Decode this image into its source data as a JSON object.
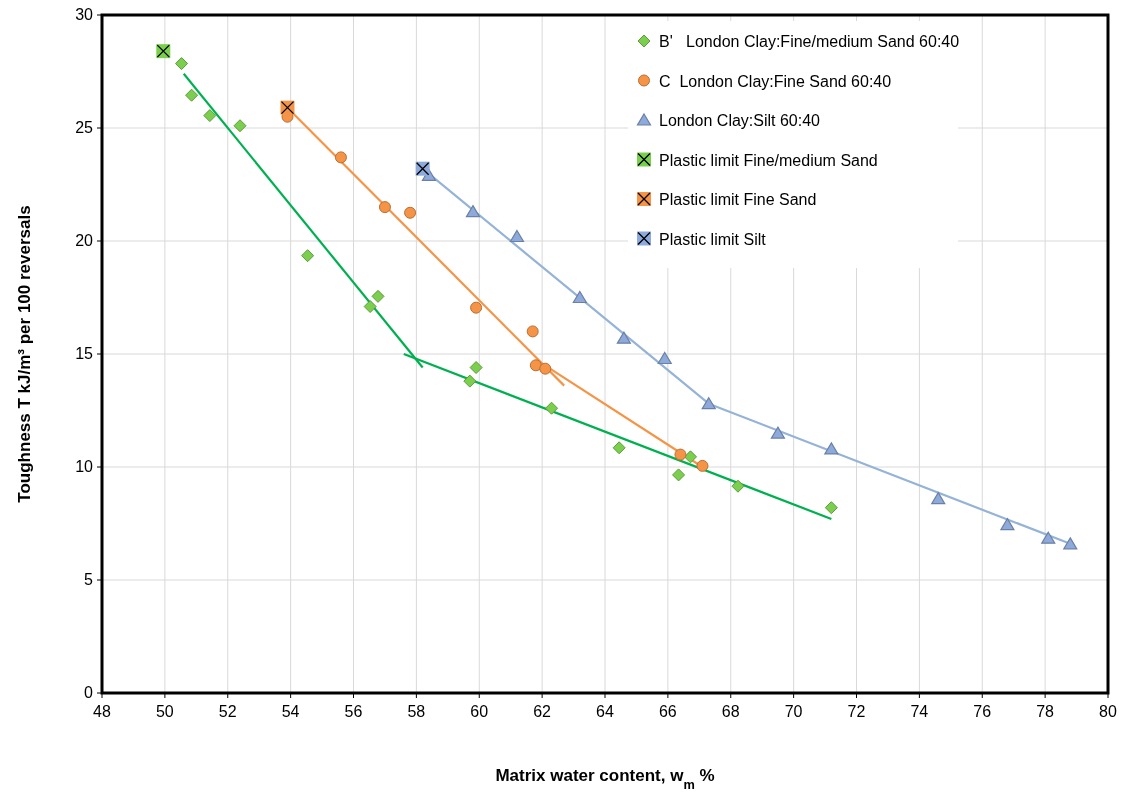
{
  "chart_data": {
    "type": "scatter",
    "xlabel": "Matrix water content, w$_{m}$  %",
    "ylabel": "Toughness T kJ/m³ per 100 reversals",
    "xlim": [
      48,
      80
    ],
    "ylim": [
      0,
      30
    ],
    "xticks": [
      48,
      50,
      52,
      54,
      56,
      58,
      60,
      62,
      64,
      66,
      68,
      70,
      72,
      74,
      76,
      78,
      80
    ],
    "yticks": [
      0,
      5,
      10,
      15,
      20,
      25,
      30
    ],
    "grid": true,
    "legend": "top right",
    "series": [
      {
        "name": "B'   London Clay:Fine/medium Sand 60:40",
        "marker": "diamond",
        "color": "#7ccf4e",
        "x": [
          50.53,
          50.85,
          51.43,
          52.39,
          54.54,
          56.53,
          56.78,
          59.7,
          59.9,
          62.3,
          64.45,
          66.34,
          66.72,
          68.23,
          71.2
        ],
        "values": [
          27.85,
          26.45,
          25.55,
          25.1,
          19.35,
          17.1,
          17.55,
          13.8,
          14.4,
          12.6,
          10.85,
          9.65,
          10.45,
          9.15,
          8.2
        ]
      },
      {
        "name": "C  London Clay:Fine Sand 60:40",
        "marker": "circle",
        "color": "#f59446",
        "x": [
          53.9,
          55.6,
          57.0,
          57.8,
          59.9,
          61.7,
          61.8,
          62.1,
          66.4,
          67.1
        ],
        "values": [
          25.5,
          23.7,
          21.5,
          21.25,
          17.05,
          16.0,
          14.5,
          14.35,
          10.55,
          10.05
        ]
      },
      {
        "name": "London Clay:Silt 60:40",
        "marker": "triangle",
        "color": "#8eaadb",
        "x": [
          58.4,
          59.8,
          61.2,
          63.2,
          64.6,
          65.9,
          67.3,
          69.5,
          71.2,
          74.6,
          76.8,
          78.1,
          78.8
        ],
        "values": [
          22.9,
          21.3,
          20.2,
          17.5,
          15.7,
          14.8,
          12.8,
          11.5,
          10.8,
          8.6,
          7.45,
          6.85,
          6.6
        ]
      },
      {
        "name": "Plastic limit Fine/medium Sand",
        "marker": "square",
        "color": "#7ccf4e",
        "x": [
          49.95
        ],
        "values": [
          28.4
        ]
      },
      {
        "name": "Plastic limit Fine Sand",
        "marker": "square",
        "color": "#f59446",
        "x": [
          53.9
        ],
        "values": [
          25.9
        ]
      },
      {
        "name": "Plastic limit Silt",
        "marker": "square",
        "color": "#8eaadb",
        "x": [
          58.2
        ],
        "values": [
          23.2
        ]
      },
      {
        "type": "line",
        "color": "#00b050",
        "x": [
          50.6,
          58.2
        ],
        "values": [
          27.4,
          14.4
        ]
      },
      {
        "type": "line",
        "color": "#00b050",
        "x": [
          57.6,
          71.2
        ],
        "values": [
          15.0,
          7.7
        ]
      },
      {
        "type": "line",
        "color": "#f59446",
        "x": [
          53.9,
          62.7
        ],
        "values": [
          25.9,
          13.6
        ]
      },
      {
        "type": "line",
        "color": "#f59446",
        "x": [
          62.2,
          67.1
        ],
        "values": [
          14.4,
          10.0
        ]
      },
      {
        "type": "line",
        "color": "#95b3d7",
        "x": [
          58.2,
          67.3,
          78.8
        ],
        "values": [
          23.2,
          12.8,
          6.6
        ]
      }
    ]
  }
}
